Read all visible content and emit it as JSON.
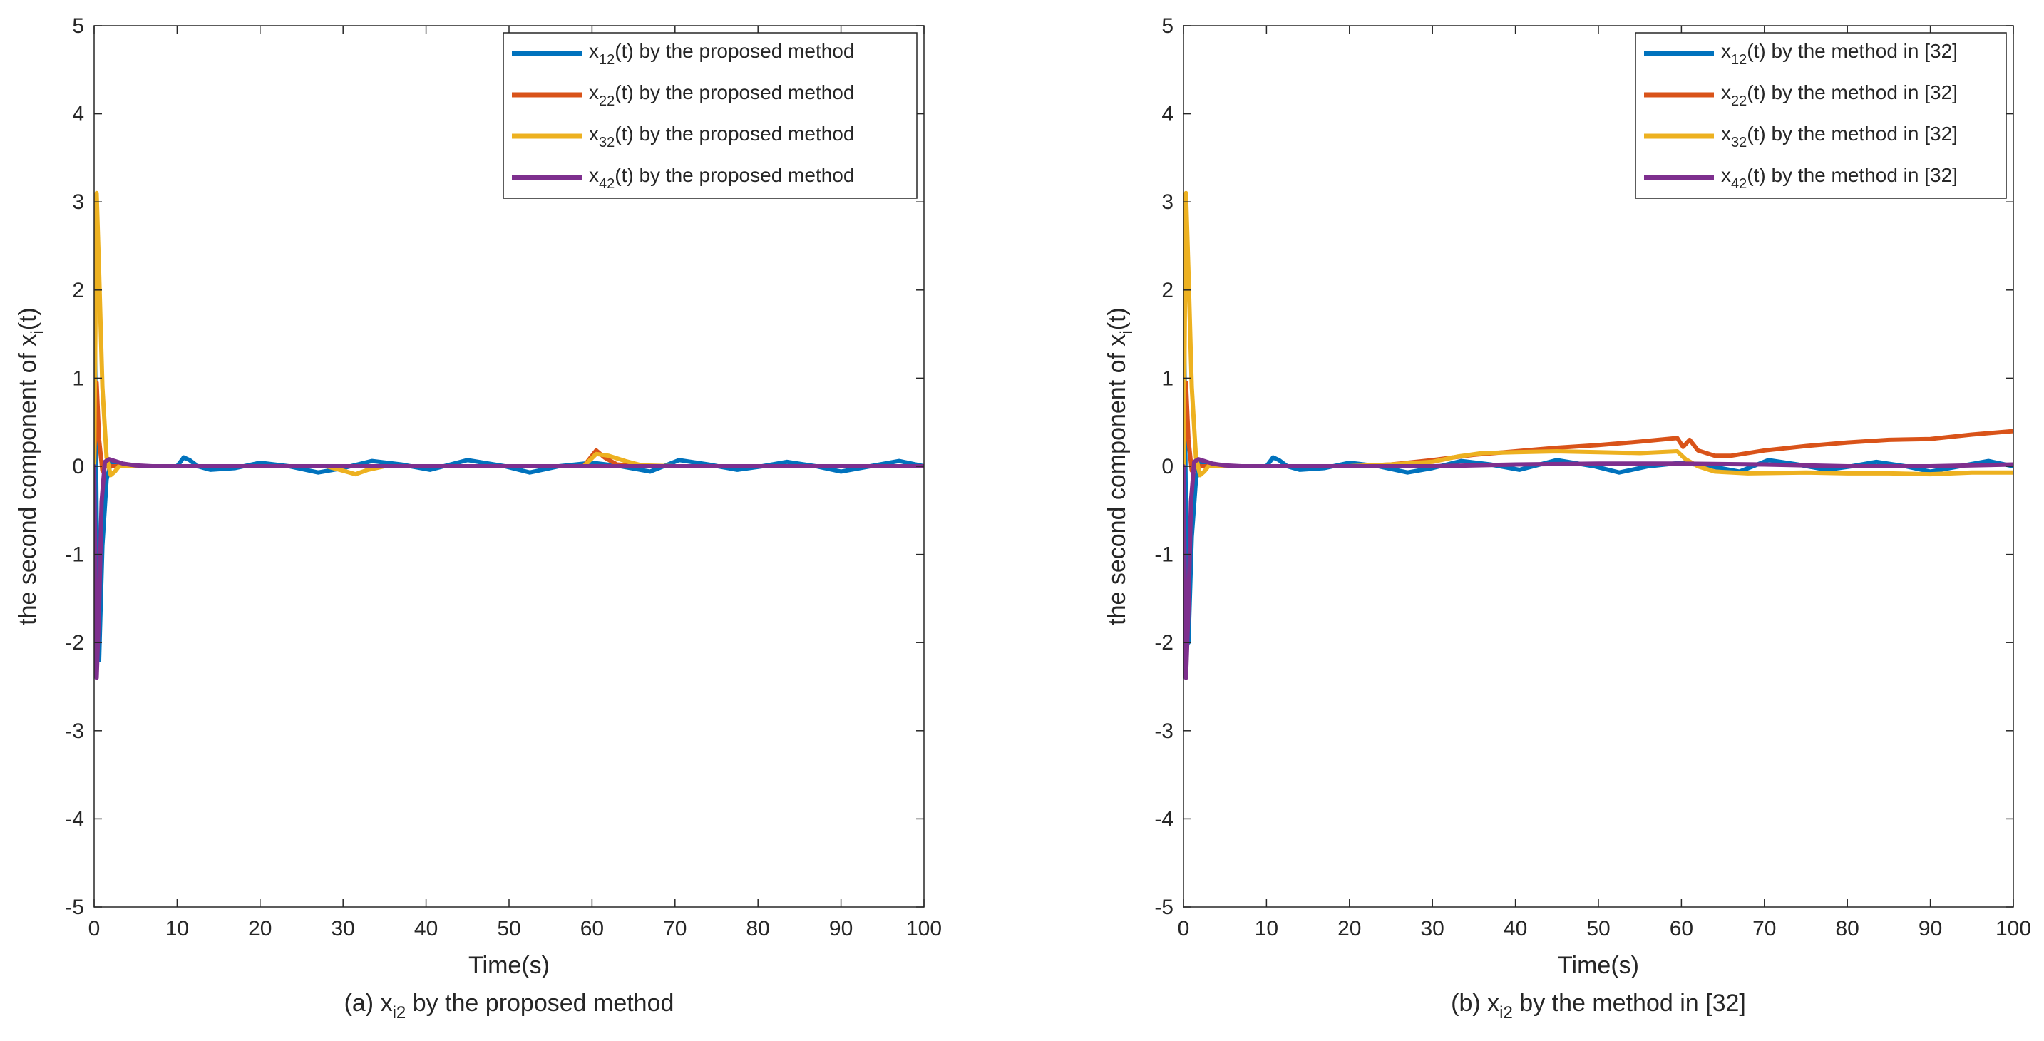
{
  "chart_data": [
    {
      "type": "line",
      "xlabel": "Time(s)",
      "ylabel_main": "the second component of x",
      "ylabel_sub": "i",
      "ylabel_tail": "(t)",
      "caption_pre": "(a) x",
      "caption_sub": "i2",
      "caption_post": " by the proposed method",
      "xlim": [
        0,
        100
      ],
      "ylim": [
        -5,
        5
      ],
      "xticks": [
        "0",
        "10",
        "20",
        "30",
        "40",
        "50",
        "60",
        "70",
        "80",
        "90",
        "100"
      ],
      "yticks": [
        "-5",
        "-4",
        "-3",
        "-2",
        "-1",
        "0",
        "1",
        "2",
        "3",
        "4",
        "5"
      ],
      "legend_position": "top-right",
      "series": [
        {
          "name_pre": "x",
          "name_sub": "12",
          "name_post": "(t) by the proposed method",
          "color": "#0072BD",
          "x": [
            0,
            0.3,
            0.6,
            1.0,
            1.5,
            2,
            3,
            4,
            6,
            8,
            10,
            10.8,
            11.5,
            12.5,
            14,
            17,
            20,
            23.5,
            27,
            30,
            33.5,
            37,
            40.5,
            45,
            49.5,
            52.5,
            56,
            60,
            63.5,
            67,
            70.5,
            74,
            77.5,
            80.5,
            83.5,
            87,
            90,
            93.5,
            97,
            100
          ],
          "y": [
            2.4,
            -0.6,
            -2.2,
            -0.9,
            -0.15,
            0.03,
            0.0,
            0.0,
            0.0,
            0.0,
            0.0,
            0.1,
            0.07,
            0.0,
            -0.04,
            -0.02,
            0.04,
            0.0,
            -0.07,
            -0.02,
            0.06,
            0.02,
            -0.04,
            0.07,
            0.0,
            -0.07,
            0.0,
            0.04,
            0.0,
            -0.06,
            0.07,
            0.02,
            -0.04,
            0.0,
            0.05,
            0.0,
            -0.06,
            0.0,
            0.06,
            0.0
          ]
        },
        {
          "name_pre": "x",
          "name_sub": "22",
          "name_post": "(t) by the proposed method",
          "color": "#D95319",
          "x": [
            0,
            0.3,
            0.6,
            1.0,
            1.5,
            2,
            3,
            5,
            10,
            20,
            30,
            40,
            50,
            59,
            60.5,
            61.5,
            63,
            66,
            70,
            80,
            90,
            100
          ],
          "y": [
            0.0,
            0.95,
            0.3,
            -0.05,
            0.02,
            0.0,
            0.0,
            0.0,
            0.0,
            0.0,
            0.0,
            0.0,
            0.0,
            0.0,
            0.18,
            0.1,
            0.02,
            0.0,
            0.0,
            0.0,
            0.0,
            0.0
          ]
        },
        {
          "name_pre": "x",
          "name_sub": "32",
          "name_post": "(t) by the proposed method",
          "color": "#EDB120",
          "x": [
            0,
            0.3,
            0.6,
            1.0,
            1.5,
            2,
            2.5,
            3,
            4,
            6,
            10,
            20,
            28,
            30,
            31.5,
            33,
            35,
            40,
            50,
            59,
            60.5,
            62,
            64,
            66,
            70,
            80,
            90,
            100
          ],
          "y": [
            0.0,
            3.1,
            2.2,
            0.9,
            0.1,
            -0.1,
            -0.06,
            0.0,
            0.0,
            0.0,
            0.0,
            0.0,
            0.0,
            -0.05,
            -0.09,
            -0.04,
            0.0,
            0.0,
            0.0,
            0.0,
            0.14,
            0.12,
            0.06,
            0.01,
            0.0,
            0.0,
            0.0,
            0.0
          ]
        },
        {
          "name_pre": "x",
          "name_sub": "42",
          "name_post": "(t) by the proposed method",
          "color": "#7E2F8E",
          "x": [
            0,
            0.3,
            0.6,
            0.9,
            1.3,
            1.8,
            2.5,
            3.5,
            5,
            7,
            10,
            20,
            30,
            40,
            50,
            60,
            70,
            80,
            90,
            100
          ],
          "y": [
            0.0,
            -2.4,
            -1.6,
            -0.4,
            0.05,
            0.08,
            0.06,
            0.03,
            0.01,
            0.0,
            0.0,
            0.0,
            0.0,
            0.0,
            0.0,
            0.0,
            0.0,
            0.0,
            0.0,
            0.0
          ]
        }
      ]
    },
    {
      "type": "line",
      "xlabel": "Time(s)",
      "ylabel_main": "the second component of x",
      "ylabel_sub": "i",
      "ylabel_tail": "(t)",
      "caption_pre": "(b) x",
      "caption_sub": "i2",
      "caption_post": " by the method in [32]",
      "xlim": [
        0,
        100
      ],
      "ylim": [
        -5,
        5
      ],
      "xticks": [
        "0",
        "10",
        "20",
        "30",
        "40",
        "50",
        "60",
        "70",
        "80",
        "90",
        "100"
      ],
      "yticks": [
        "-5",
        "-4",
        "-3",
        "-2",
        "-1",
        "0",
        "1",
        "2",
        "3",
        "4",
        "5"
      ],
      "legend_position": "top-right",
      "series": [
        {
          "name_pre": "x",
          "name_sub": "12",
          "name_post": "(t) by the method in [32]",
          "color": "#0072BD",
          "x": [
            0,
            0.3,
            0.6,
            1.0,
            1.5,
            2,
            3,
            4,
            6,
            8,
            10,
            10.8,
            11.5,
            12.5,
            14,
            17,
            20,
            23.5,
            27,
            30,
            33.5,
            37,
            40.5,
            45,
            49.5,
            52.5,
            56,
            60,
            63.5,
            67,
            70.5,
            74,
            77.5,
            80.5,
            83.5,
            87,
            90,
            93.5,
            97,
            100
          ],
          "y": [
            2.3,
            -0.6,
            -2.0,
            -0.8,
            -0.15,
            0.03,
            0.0,
            0.0,
            0.0,
            0.0,
            0.0,
            0.1,
            0.07,
            0.0,
            -0.04,
            -0.02,
            0.04,
            0.0,
            -0.07,
            -0.02,
            0.06,
            0.02,
            -0.04,
            0.07,
            0.0,
            -0.07,
            0.0,
            0.04,
            0.0,
            -0.06,
            0.07,
            0.02,
            -0.04,
            0.0,
            0.05,
            0.0,
            -0.06,
            0.0,
            0.06,
            0.0
          ]
        },
        {
          "name_pre": "x",
          "name_sub": "22",
          "name_post": "(t) by the method in [32]",
          "color": "#D95319",
          "x": [
            0,
            0.3,
            0.6,
            1.0,
            1.5,
            2,
            3,
            5,
            10,
            20,
            25,
            30,
            35,
            40,
            45,
            50,
            55,
            59.5,
            60.2,
            61,
            62,
            64,
            66,
            70,
            75,
            80,
            85,
            90,
            95,
            100
          ],
          "y": [
            0.0,
            0.95,
            0.3,
            -0.05,
            0.02,
            0.0,
            0.0,
            0.0,
            0.0,
            0.0,
            0.02,
            0.07,
            0.13,
            0.17,
            0.21,
            0.24,
            0.28,
            0.32,
            0.22,
            0.3,
            0.18,
            0.12,
            0.12,
            0.18,
            0.23,
            0.27,
            0.3,
            0.31,
            0.36,
            0.4
          ]
        },
        {
          "name_pre": "x",
          "name_sub": "32",
          "name_post": "(t) by the method in [32]",
          "color": "#EDB120",
          "x": [
            0,
            0.3,
            0.6,
            1.0,
            1.5,
            2,
            2.5,
            3,
            4,
            6,
            10,
            20,
            25,
            30,
            33,
            36,
            40,
            45,
            50,
            55,
            59.5,
            60.5,
            62,
            64,
            68,
            75,
            80,
            85,
            90,
            95,
            100
          ],
          "y": [
            0.0,
            3.1,
            2.2,
            0.9,
            0.1,
            -0.1,
            -0.06,
            0.0,
            0.0,
            0.0,
            0.0,
            0.0,
            0.02,
            0.05,
            0.11,
            0.15,
            0.16,
            0.17,
            0.16,
            0.15,
            0.17,
            0.08,
            0.0,
            -0.06,
            -0.08,
            -0.07,
            -0.08,
            -0.08,
            -0.09,
            -0.07,
            -0.07
          ]
        },
        {
          "name_pre": "x",
          "name_sub": "42",
          "name_post": "(t) by the method in [32]",
          "color": "#7E2F8E",
          "x": [
            0,
            0.3,
            0.6,
            0.9,
            1.3,
            1.8,
            2.5,
            3.5,
            5,
            7,
            10,
            20,
            30,
            40,
            50,
            60,
            70,
            80,
            90,
            100
          ],
          "y": [
            0.0,
            -2.4,
            -1.6,
            -0.4,
            0.05,
            0.08,
            0.06,
            0.03,
            0.01,
            0.0,
            0.0,
            0.0,
            0.0,
            0.02,
            0.03,
            0.03,
            0.02,
            0.0,
            0.0,
            0.02
          ]
        }
      ]
    }
  ]
}
